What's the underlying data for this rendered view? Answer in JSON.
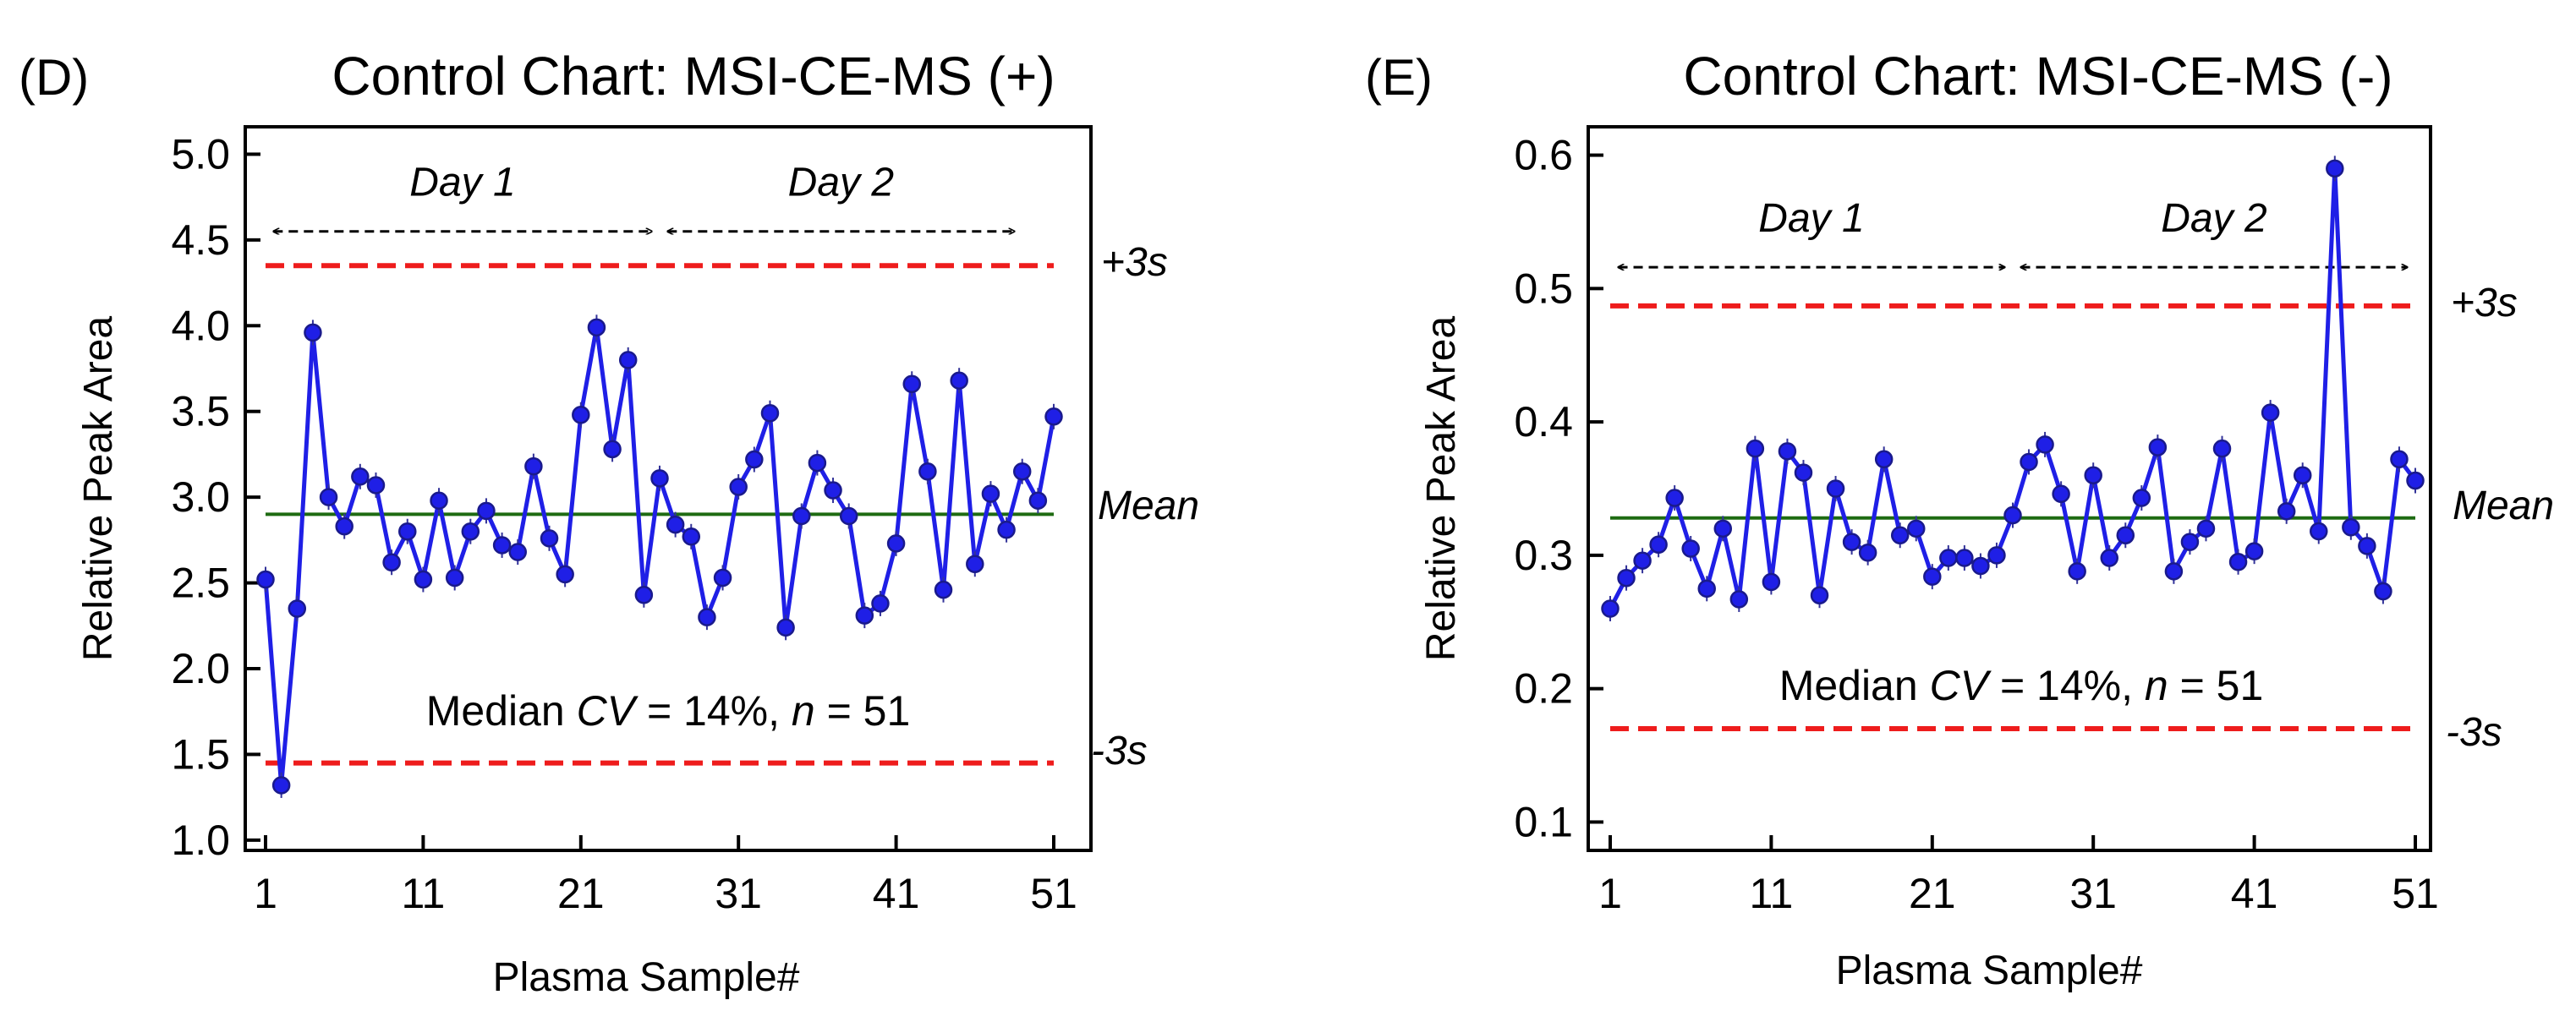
{
  "colors": {
    "series": "#1f1fe6",
    "marker": "#1a1a8c",
    "mean": "#1e6b12",
    "limit": "#ee1c1c",
    "arrow": "#000000"
  },
  "chart_data": [
    {
      "type": "line",
      "panel_label": "(D)",
      "title": "Control Chart: MSI-CE-MS (+)",
      "xlabel": "Plasma Sample#",
      "ylabel": "Relative Peak Area",
      "xlim": [
        0,
        52
      ],
      "ylim": [
        0.95,
        5.15
      ],
      "xticks": [
        1,
        11,
        21,
        31,
        41,
        51
      ],
      "xtick_labels": [
        "1",
        "11",
        "21",
        "31",
        "41",
        "51"
      ],
      "yticks": [
        1.0,
        1.5,
        2.0,
        2.5,
        3.0,
        3.5,
        4.0,
        4.5,
        5.0
      ],
      "ytick_labels": [
        "1.0",
        "1.5",
        "2.0",
        "2.5",
        "3.0",
        "3.5",
        "4.0",
        "4.5",
        "5.0"
      ],
      "mean": 2.9,
      "upper_limit": 4.35,
      "lower_limit": 1.45,
      "mean_label": "Mean",
      "upper_label": "+3s",
      "lower_label": "-3s",
      "cv_note": {
        "prefix": "Median ",
        "cv": "CV",
        "mid": " = 14%, ",
        "n": "n",
        "suffix": " = 51"
      },
      "day_spans": [
        {
          "label": "Day 1",
          "start": 1.5,
          "end": 25.5,
          "y": 4.55
        },
        {
          "label": "Day 2",
          "start": 26.5,
          "end": 48.5,
          "y": 4.55
        }
      ],
      "series": [
        {
          "name": "Relative Peak Area",
          "x": [
            1,
            2,
            3,
            4,
            5,
            6,
            7,
            8,
            9,
            10,
            11,
            12,
            13,
            14,
            15,
            16,
            17,
            18,
            19,
            20,
            21,
            22,
            23,
            24,
            25,
            26,
            27,
            28,
            29,
            30,
            31,
            32,
            33,
            34,
            35,
            36,
            37,
            38,
            39,
            40,
            41,
            42,
            43,
            44,
            45,
            46,
            47,
            48,
            49,
            50,
            51
          ],
          "values": [
            2.52,
            1.32,
            2.35,
            3.96,
            3.0,
            2.83,
            3.12,
            3.07,
            2.62,
            2.8,
            2.52,
            2.98,
            2.53,
            2.8,
            2.92,
            2.72,
            2.68,
            3.18,
            2.76,
            2.55,
            3.48,
            3.99,
            3.28,
            3.8,
            2.43,
            3.11,
            2.84,
            2.77,
            2.3,
            2.53,
            3.06,
            3.22,
            3.49,
            2.24,
            2.89,
            3.2,
            3.04,
            2.89,
            2.31,
            2.38,
            2.73,
            3.66,
            3.15,
            2.46,
            3.68,
            2.61,
            3.02,
            2.81,
            3.15,
            2.98,
            3.47
          ]
        }
      ]
    },
    {
      "type": "line",
      "panel_label": "(E)",
      "title": "Control Chart: MSI-CE-MS (-)",
      "xlabel": "Plasma Sample#",
      "ylabel": "Relative Peak Area",
      "xlim": [
        0,
        52
      ],
      "ylim": [
        0.08,
        0.62
      ],
      "xticks": [
        1,
        11,
        21,
        31,
        41,
        51
      ],
      "xtick_labels": [
        "1",
        "11",
        "21",
        "31",
        "41",
        "51"
      ],
      "yticks": [
        0.1,
        0.2,
        0.3,
        0.4,
        0.5,
        0.6
      ],
      "ytick_labels": [
        "0.1",
        "0.2",
        "0.3",
        "0.4",
        "0.5",
        "0.6"
      ],
      "mean": 0.328,
      "upper_limit": 0.487,
      "lower_limit": 0.17,
      "mean_label": "Mean",
      "upper_label": "+3s",
      "lower_label": "-3s",
      "cv_note": {
        "prefix": "Median ",
        "cv": "CV",
        "mid": " = 14%, ",
        "n": "n",
        "suffix": " = 51"
      },
      "day_spans": [
        {
          "label": "Day 1",
          "start": 1.5,
          "end": 25.5,
          "y": 0.516
        },
        {
          "label": "Day 2",
          "start": 26.5,
          "end": 50.5,
          "y": 0.516
        }
      ],
      "series": [
        {
          "name": "Relative Peak Area",
          "x": [
            1,
            2,
            3,
            4,
            5,
            6,
            7,
            8,
            9,
            10,
            11,
            12,
            13,
            14,
            15,
            16,
            17,
            18,
            19,
            20,
            21,
            22,
            23,
            24,
            25,
            26,
            27,
            28,
            29,
            30,
            31,
            32,
            33,
            34,
            35,
            36,
            37,
            38,
            39,
            40,
            41,
            42,
            43,
            44,
            45,
            46,
            47,
            48,
            49,
            50,
            51
          ],
          "values": [
            0.26,
            0.283,
            0.296,
            0.308,
            0.343,
            0.305,
            0.275,
            0.32,
            0.267,
            0.38,
            0.28,
            0.378,
            0.362,
            0.27,
            0.35,
            0.31,
            0.302,
            0.372,
            0.315,
            0.32,
            0.284,
            0.298,
            0.298,
            0.292,
            0.3,
            0.33,
            0.37,
            0.383,
            0.346,
            0.288,
            0.36,
            0.298,
            0.315,
            0.343,
            0.381,
            0.288,
            0.31,
            0.32,
            0.38,
            0.295,
            0.303,
            0.407,
            0.333,
            0.36,
            0.318,
            0.59,
            0.321,
            0.307,
            0.273,
            0.372,
            0.356
          ]
        }
      ]
    }
  ]
}
